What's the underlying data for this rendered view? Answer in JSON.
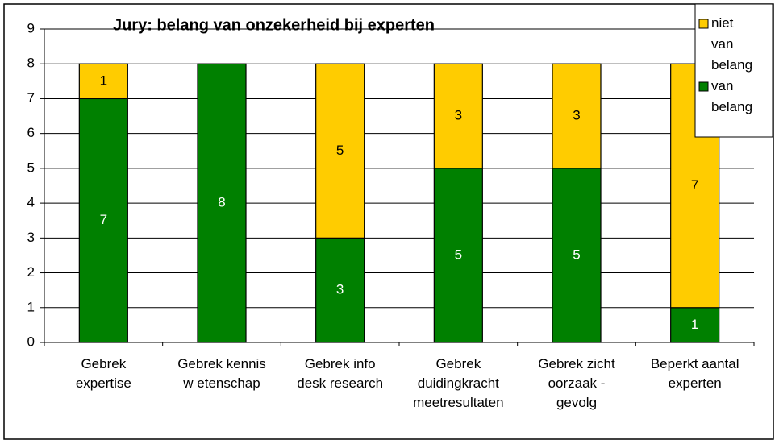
{
  "chart_data": {
    "type": "stacked_bar",
    "title": "Jury: belang van onzekerheid bij experten",
    "categories": [
      "Gebrek\nexpertise",
      "Gebrek kennis\nw etenschap",
      "Gebrek info\ndesk research",
      "Gebrek\nduidingkracht\nmeetresultaten",
      "Gebrek zicht\noorzaak -\ngevolg",
      "Beperkt aantal\nexperten"
    ],
    "series": [
      {
        "name": "van belang",
        "color": "#008000",
        "label_color": "#ffffff",
        "values": [
          7,
          8,
          3,
          5,
          5,
          1
        ]
      },
      {
        "name": "niet van belang",
        "color": "#ffcc00",
        "label_color": "#000000",
        "values": [
          1,
          0,
          5,
          3,
          3,
          7
        ]
      }
    ],
    "ylim": [
      0,
      9
    ],
    "yticks": [
      0,
      1,
      2,
      3,
      4,
      5,
      6,
      7,
      8,
      9
    ],
    "grid": true,
    "legend": "top-right"
  }
}
